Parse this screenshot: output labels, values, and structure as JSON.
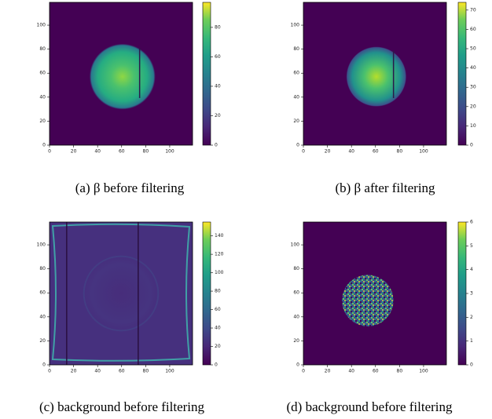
{
  "chart_data": [
    {
      "type": "heatmap",
      "caption": "(a) β before filtering",
      "xlim": [
        0,
        119
      ],
      "ylim": [
        0,
        119
      ],
      "xticks": [
        0,
        20,
        40,
        60,
        80,
        100
      ],
      "yticks": [
        0,
        20,
        40,
        60,
        80,
        100
      ],
      "clim": [
        0,
        97
      ],
      "cticks": [
        0,
        20,
        40,
        60,
        80
      ],
      "colormap": "viridis"
    },
    {
      "type": "heatmap",
      "caption": "(b) β after filtering",
      "xlim": [
        0,
        119
      ],
      "ylim": [
        0,
        119
      ],
      "xticks": [
        0,
        20,
        40,
        60,
        80,
        100
      ],
      "yticks": [
        0,
        20,
        40,
        60,
        80,
        100
      ],
      "clim": [
        0,
        74
      ],
      "cticks": [
        0,
        10,
        20,
        30,
        40,
        50,
        60,
        70
      ],
      "colormap": "viridis"
    },
    {
      "type": "heatmap",
      "caption": "(c) background before filtering",
      "xlim": [
        0,
        119
      ],
      "ylim": [
        0,
        119
      ],
      "xticks": [
        0,
        20,
        40,
        60,
        80,
        100
      ],
      "yticks": [
        0,
        20,
        40,
        60,
        80,
        100
      ],
      "clim": [
        0,
        155
      ],
      "cticks": [
        0,
        20,
        40,
        60,
        80,
        100,
        120,
        140
      ],
      "colormap": "viridis"
    },
    {
      "type": "heatmap",
      "caption": "(d) background before filtering",
      "xlim": [
        0,
        119
      ],
      "ylim": [
        0,
        119
      ],
      "xticks": [
        0,
        20,
        40,
        60,
        80,
        100
      ],
      "yticks": [
        0,
        20,
        40,
        60,
        80,
        100
      ],
      "clim": [
        0,
        6
      ],
      "cticks": [
        0,
        1,
        2,
        3,
        4,
        5,
        6
      ],
      "colormap": "viridis"
    }
  ]
}
